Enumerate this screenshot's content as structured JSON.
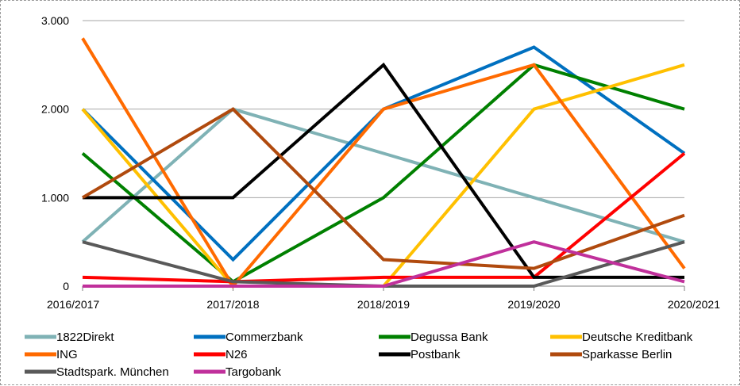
{
  "chart_data": {
    "type": "line",
    "title": "",
    "xlabel": "",
    "ylabel": "",
    "categories": [
      "2016/2017",
      "2017/2018",
      "2018/2019",
      "2019/2020",
      "2020/2021"
    ],
    "ylim": [
      0,
      3000
    ],
    "yticks": [
      0,
      1000,
      2000,
      3000
    ],
    "ytick_labels": [
      "0",
      "1.000",
      "2.000",
      "3.000"
    ],
    "grid": true,
    "legend_position": "bottom",
    "series": [
      {
        "name": "1822Direkt",
        "color": "#7fb2b5",
        "values": [
          500,
          2000,
          1500,
          1000,
          500
        ]
      },
      {
        "name": "Commerzbank",
        "color": "#0070c0",
        "values": [
          2000,
          300,
          2000,
          2700,
          1500
        ]
      },
      {
        "name": "Degussa Bank",
        "color": "#008000",
        "values": [
          1500,
          50,
          1000,
          2500,
          2000
        ]
      },
      {
        "name": "Deutsche Kreditbank",
        "color": "#ffc000",
        "values": [
          2000,
          0,
          0,
          2000,
          2500
        ]
      },
      {
        "name": "ING",
        "color": "#ff6a00",
        "values": [
          2800,
          0,
          2000,
          2500,
          200
        ]
      },
      {
        "name": "N26",
        "color": "#ff0000",
        "values": [
          100,
          50,
          100,
          100,
          1500
        ]
      },
      {
        "name": "Postbank",
        "color": "#000000",
        "values": [
          1000,
          1000,
          2500,
          100,
          100
        ]
      },
      {
        "name": "Sparkasse Berlin",
        "color": "#b04a0e",
        "values": [
          1000,
          2000,
          300,
          200,
          800
        ]
      },
      {
        "name": "Stadtspark. München",
        "color": "#595959",
        "values": [
          500,
          50,
          0,
          0,
          500
        ]
      },
      {
        "name": "Targobank",
        "color": "#c0309b",
        "values": [
          0,
          0,
          0,
          500,
          50
        ]
      }
    ]
  }
}
